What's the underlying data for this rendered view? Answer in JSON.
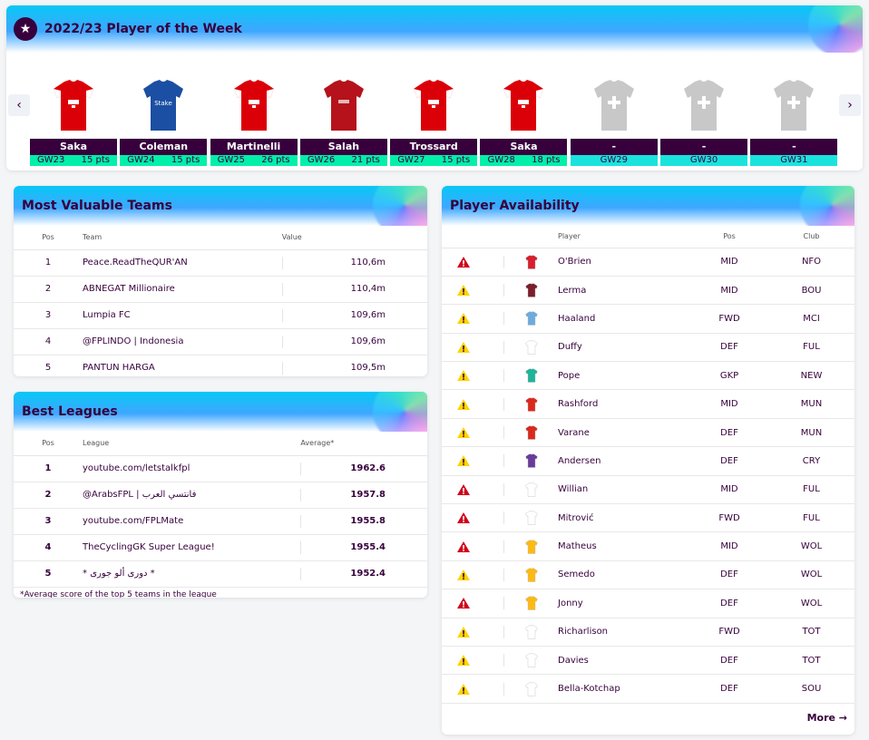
{
  "potw": {
    "title": "2022/23 Player of the Week",
    "items": [
      {
        "name": "Saka",
        "gw": "GW23",
        "pts": "15 pts",
        "kit": "arsenal"
      },
      {
        "name": "Coleman",
        "gw": "GW24",
        "pts": "15 pts",
        "kit": "everton"
      },
      {
        "name": "Martinelli",
        "gw": "GW25",
        "pts": "26 pts",
        "kit": "arsenal"
      },
      {
        "name": "Salah",
        "gw": "GW26",
        "pts": "21 pts",
        "kit": "liverpool"
      },
      {
        "name": "Trossard",
        "gw": "GW27",
        "pts": "15 pts",
        "kit": "arsenal"
      },
      {
        "name": "Saka",
        "gw": "GW28",
        "pts": "18 pts",
        "kit": "arsenal"
      },
      {
        "name": "-",
        "gw": "GW29",
        "pts": "",
        "kit": "empty"
      },
      {
        "name": "-",
        "gw": "GW30",
        "pts": "",
        "kit": "empty"
      },
      {
        "name": "-",
        "gw": "GW31",
        "pts": "",
        "kit": "empty"
      }
    ]
  },
  "mvt": {
    "title": "Most Valuable Teams",
    "headers": {
      "pos": "Pos",
      "team": "Team",
      "value": "Value"
    },
    "rows": [
      {
        "pos": "1",
        "team": "Peace.ReadTheQUR'AN",
        "value": "110,6m"
      },
      {
        "pos": "2",
        "team": "ABNEGAT Millionaire",
        "value": "110,4m"
      },
      {
        "pos": "3",
        "team": "Lumpia FC",
        "value": "109,6m"
      },
      {
        "pos": "4",
        "team": "@FPLINDO | Indonesia",
        "value": "109,6m"
      },
      {
        "pos": "5",
        "team": "PANTUN HARGA",
        "value": "109,5m"
      }
    ]
  },
  "bl": {
    "title": "Best Leagues",
    "headers": {
      "pos": "Pos",
      "league": "League",
      "average": "Average*"
    },
    "rows": [
      {
        "pos": "1",
        "league": "youtube.com/letstalkfpl",
        "avg": "1962.6"
      },
      {
        "pos": "2",
        "league": "@ArabsFPL | فانتسي العرب",
        "avg": "1957.8"
      },
      {
        "pos": "3",
        "league": "youtube.com/FPLMate",
        "avg": "1955.8"
      },
      {
        "pos": "4",
        "league": "TheCyclingGK Super League!",
        "avg": "1955.4"
      },
      {
        "pos": "5",
        "league": "* دوری ألو جوری *",
        "avg": "1952.4"
      }
    ],
    "footnote": "*Average score of the top 5 teams in the league"
  },
  "pa": {
    "title": "Player Availability",
    "headers": {
      "player": "Player",
      "pos": "Pos",
      "club": "Club"
    },
    "rows": [
      {
        "status": "red",
        "kit": "#d81e2c",
        "player": "O'Brien",
        "pos": "MID",
        "club": "NFO"
      },
      {
        "status": "yellow",
        "kit": "#7a1f2b",
        "player": "Lerma",
        "pos": "MID",
        "club": "BOU"
      },
      {
        "status": "yellow",
        "kit": "#6cabdd",
        "player": "Haaland",
        "pos": "FWD",
        "club": "MCI"
      },
      {
        "status": "yellow",
        "kit": "#ffffff",
        "player": "Duffy",
        "pos": "DEF",
        "club": "FUL"
      },
      {
        "status": "yellow",
        "kit": "#1fb39a",
        "player": "Pope",
        "pos": "GKP",
        "club": "NEW"
      },
      {
        "status": "yellow",
        "kit": "#da291c",
        "player": "Rashford",
        "pos": "MID",
        "club": "MUN"
      },
      {
        "status": "yellow",
        "kit": "#da291c",
        "player": "Varane",
        "pos": "DEF",
        "club": "MUN"
      },
      {
        "status": "yellow",
        "kit": "#6a3c9a",
        "player": "Andersen",
        "pos": "DEF",
        "club": "CRY"
      },
      {
        "status": "red",
        "kit": "#ffffff",
        "player": "Willian",
        "pos": "MID",
        "club": "FUL"
      },
      {
        "status": "red",
        "kit": "#ffffff",
        "player": "Mitrović",
        "pos": "FWD",
        "club": "FUL"
      },
      {
        "status": "red",
        "kit": "#fdb913",
        "player": "Matheus",
        "pos": "MID",
        "club": "WOL"
      },
      {
        "status": "yellow",
        "kit": "#fdb913",
        "player": "Semedo",
        "pos": "DEF",
        "club": "WOL"
      },
      {
        "status": "red",
        "kit": "#fdb913",
        "player": "Jonny",
        "pos": "DEF",
        "club": "WOL"
      },
      {
        "status": "yellow",
        "kit": "#ffffff",
        "player": "Richarlison",
        "pos": "FWD",
        "club": "TOT"
      },
      {
        "status": "yellow",
        "kit": "#ffffff",
        "player": "Davies",
        "pos": "DEF",
        "club": "TOT"
      },
      {
        "status": "yellow",
        "kit": "#ffffff",
        "player": "Bella-Kotchap",
        "pos": "DEF",
        "club": "SOU"
      }
    ],
    "more_label": "More →"
  },
  "colors": {
    "primary": "#37003c",
    "accent": "#02efaa",
    "red": "#d0021b",
    "yellow": "#ffd400"
  }
}
